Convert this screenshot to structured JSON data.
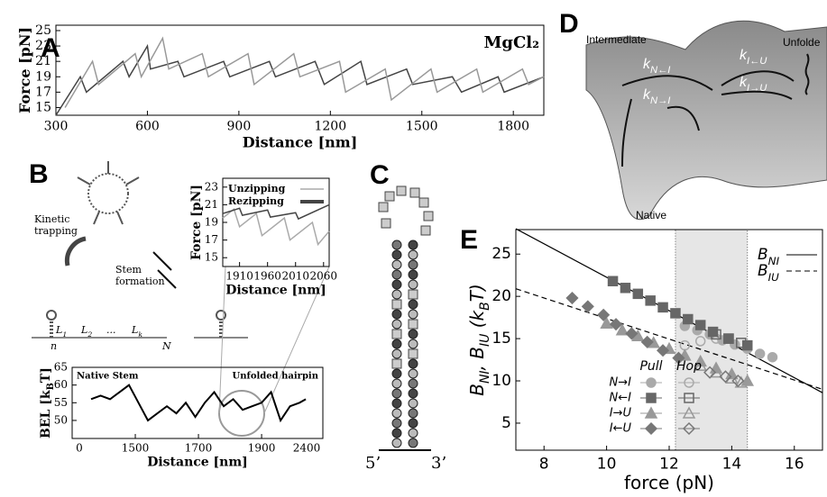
{
  "panel_labels": [
    "A",
    "B",
    "C",
    "D",
    "E"
  ],
  "panel_b": {
    "kinetic": [
      "Kinetic",
      "trapping"
    ],
    "stem": [
      "Stem",
      "formation"
    ],
    "linkers": [
      [
        "L",
        "1"
      ],
      [
        "L",
        "2"
      ],
      [
        "..."
      ],
      [
        "L",
        "k"
      ]
    ],
    "ends": [
      "n",
      "N"
    ]
  },
  "panel_c": {
    "ends": [
      "5’",
      "3’"
    ]
  },
  "panel_d": {
    "states": [
      "Intermediate",
      "Unfolde",
      "Native"
    ],
    "rates": [
      [
        "k",
        "N←I"
      ],
      [
        "k",
        "N→I"
      ],
      [
        "k",
        "I←U"
      ],
      [
        "k",
        "I→U"
      ]
    ]
  },
  "chart_data": [
    {
      "type": "line",
      "xlabel": "Distance [nm]",
      "ylabel": "Force [pN]",
      "annotation": "MgCl₂",
      "xlim": [
        300,
        1900
      ],
      "ylim": [
        14,
        25.7
      ],
      "xticks": [
        300,
        600,
        900,
        1200,
        1500,
        1800
      ],
      "yticks": [
        15,
        17,
        19,
        21,
        23,
        25
      ],
      "series": [
        {
          "color": "#444",
          "x": [
            300,
            380,
            400,
            520,
            540,
            600,
            610,
            700,
            720,
            850,
            870,
            1000,
            1020,
            1150,
            1180,
            1300,
            1320,
            1450,
            1470,
            1600,
            1630,
            1750,
            1770,
            1900
          ],
          "values": [
            14,
            19,
            17,
            21,
            19,
            23,
            20,
            21,
            19,
            21,
            19,
            21,
            19,
            21,
            18,
            21,
            18,
            20,
            18,
            19,
            17,
            19,
            17,
            19
          ]
        },
        {
          "color": "#999",
          "x": [
            330,
            420,
            440,
            560,
            580,
            650,
            670,
            780,
            800,
            930,
            950,
            1080,
            1100,
            1230,
            1250,
            1380,
            1400,
            1530,
            1550,
            1680,
            1700,
            1830,
            1850,
            1900
          ],
          "values": [
            15,
            21,
            18,
            22,
            19,
            24,
            20,
            22,
            19,
            22,
            18,
            22,
            19,
            21,
            17,
            20,
            16,
            20,
            17,
            20,
            17,
            20,
            18,
            19
          ]
        }
      ]
    },
    {
      "type": "line",
      "xlabel": "Distance [nm]",
      "ylabel": "Force [pN]",
      "xlim": [
        1880,
        2070
      ],
      "ylim": [
        14,
        24
      ],
      "xticks": [
        1910,
        1960,
        2010,
        2060
      ],
      "yticks": [
        15,
        17,
        19,
        21,
        23
      ],
      "series": [
        {
          "name": "Unzipping",
          "color": "#aaa",
          "x": [
            1880,
            1900,
            1910,
            1940,
            1950,
            1990,
            2000,
            2040,
            2050,
            2070
          ],
          "values": [
            19.5,
            20.5,
            18.5,
            20,
            17.5,
            19.5,
            17,
            19,
            16.5,
            18
          ]
        },
        {
          "name": "Rezipping",
          "color": "#444",
          "x": [
            1880,
            1910,
            1915,
            1960,
            1965,
            2010,
            2015,
            2070
          ],
          "values": [
            20,
            20.6,
            19.8,
            20.4,
            19.6,
            20.1,
            19.4,
            21
          ]
        }
      ]
    },
    {
      "type": "line",
      "xlabel": "Distance [nm]",
      "ylabel_parts": [
        "BEL [k",
        "B",
        "T]"
      ],
      "xlim": [
        1300,
        2094
      ],
      "ylim": [
        44.9,
        65
      ],
      "xticks": [
        1500,
        1700,
        1900
      ],
      "yticks": [
        50,
        55,
        60,
        65
      ],
      "break_labels": [
        "0",
        "2400"
      ],
      "annotations": [
        "Native Stem",
        "Unfolded hairpin"
      ],
      "series": [
        {
          "color": "#000",
          "x": [
            1360,
            1390,
            1420,
            1450,
            1480,
            1510,
            1540,
            1570,
            1600,
            1630,
            1660,
            1690,
            1720,
            1750,
            1780,
            1810,
            1840,
            1870,
            1900,
            1930,
            1960,
            1990,
            2020,
            2040
          ],
          "values": [
            56,
            57,
            56,
            58,
            60,
            55,
            50,
            52,
            54,
            52,
            55,
            51,
            55,
            58,
            54,
            56,
            53,
            54,
            55,
            58,
            50,
            54,
            55,
            56
          ]
        }
      ]
    },
    {
      "type": "scatter",
      "xlabel": "force (pN)",
      "ylabel_parts": [
        "B",
        "NI",
        ", B",
        "IU",
        " (k",
        "B",
        "T)"
      ],
      "xlim": [
        7.1,
        16.9
      ],
      "ylim": [
        1.8,
        27.9
      ],
      "xticks": [
        8,
        10,
        12,
        14,
        16
      ],
      "yticks": [
        5,
        10,
        15,
        20,
        25
      ],
      "shaded": [
        12.2,
        14.5
      ],
      "legend_columns": [
        "Pull",
        "Hop"
      ],
      "lines": [
        {
          "name_parts": [
            "B",
            "NI"
          ],
          "dash": false,
          "x": [
            7.1,
            16.9
          ],
          "values": [
            28,
            8.6
          ]
        },
        {
          "name_parts": [
            "B",
            "IU"
          ],
          "dash": true,
          "x": [
            7.1,
            16.9
          ],
          "values": [
            20.9,
            9
          ]
        }
      ],
      "series": [
        {
          "name": "N→I",
          "marker": "circle",
          "color": "#aaa",
          "pull": {
            "x": [
              12.5,
              12.9,
              13.3,
              13.7,
              14.1,
              14.5,
              14.9,
              15.3
            ],
            "values": [
              16.5,
              16,
              15.5,
              14.8,
              14.3,
              13.8,
              13.2,
              12.8
            ]
          },
          "hop": {
            "x": [
              12.5,
              13,
              13.5
            ],
            "values": [
              14.2,
              14.7,
              15
            ]
          }
        },
        {
          "name": "N←I",
          "marker": "square",
          "color": "#666",
          "pull": {
            "x": [
              10.2,
              10.6,
              11,
              11.4,
              11.8,
              12.2,
              12.6,
              13,
              13.4,
              13.9,
              14.5
            ],
            "values": [
              21.8,
              21,
              20.3,
              19.5,
              18.7,
              18,
              17.3,
              16.6,
              15.8,
              15,
              14.2
            ]
          },
          "hop": {
            "x": [
              13.5,
              13.9,
              14.3
            ],
            "values": [
              15.5,
              15,
              14.5
            ]
          }
        },
        {
          "name": "I→U",
          "marker": "triangle",
          "color": "#999",
          "pull": {
            "x": [
              10,
              10.5,
              11,
              11.5,
              12,
              12.5,
              13,
              13.5,
              14,
              14.5
            ],
            "values": [
              16.8,
              16,
              15.3,
              14.5,
              13.8,
              13,
              12.3,
              11.5,
              10.8,
              10
            ]
          },
          "hop": {
            "x": [
              13,
              13.5,
              14,
              14.3
            ],
            "values": [
              11.8,
              11,
              10.3,
              9.8
            ]
          }
        },
        {
          "name": "I←U",
          "marker": "diamond",
          "color": "#777",
          "pull": {
            "x": [
              8.9,
              9.4,
              9.9,
              10.3,
              10.8,
              11.3,
              11.8,
              12.3
            ],
            "values": [
              19.8,
              18.8,
              17.8,
              16.7,
              15.6,
              14.6,
              13.6,
              12.7
            ]
          },
          "hop": {
            "x": [
              13.3,
              13.8,
              14.2
            ],
            "values": [
              11,
              10.5,
              10
            ]
          }
        }
      ]
    }
  ]
}
